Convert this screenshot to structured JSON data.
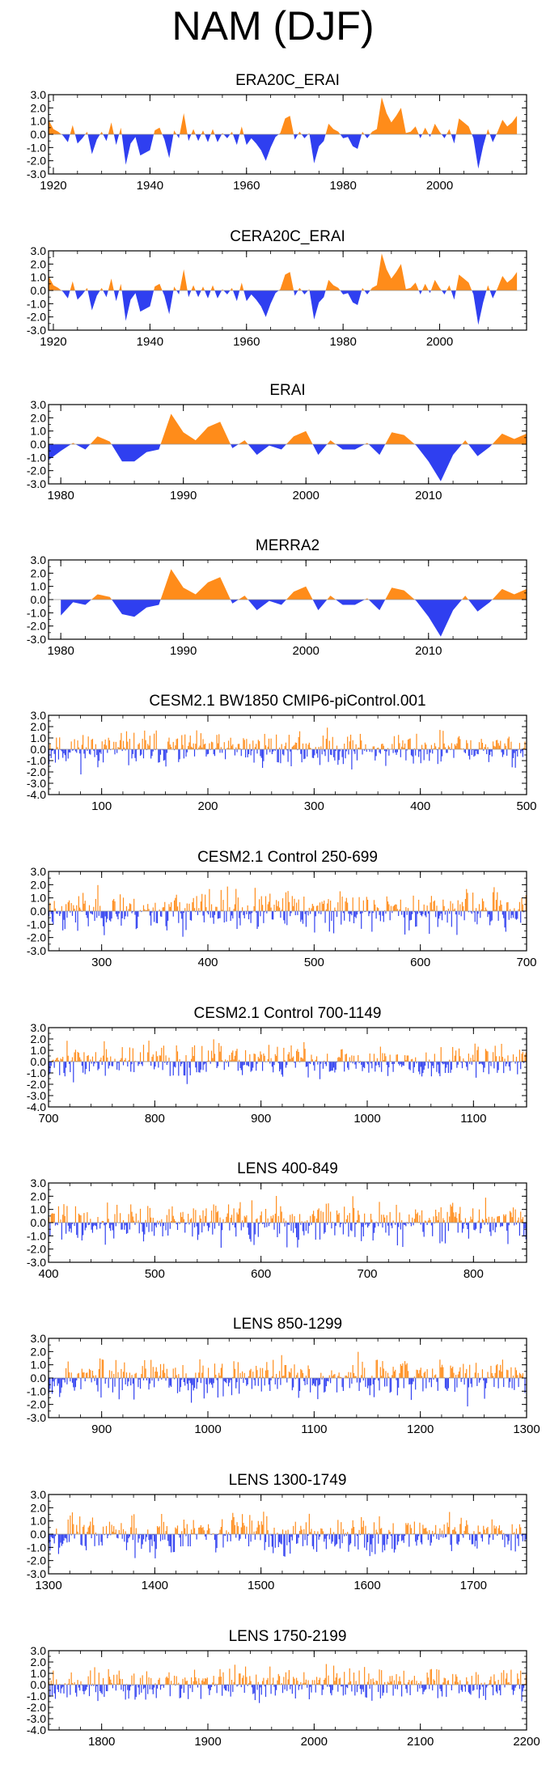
{
  "page": {
    "title": "NAM (DJF)"
  },
  "colors": {
    "positive": "#ff8c1a",
    "negative": "#2f3ff0",
    "axis": "#000000"
  },
  "chart_data": [
    {
      "type": "area",
      "title": "ERA20C_ERAI",
      "xlim": [
        1919,
        2018
      ],
      "ylim": [
        -3.0,
        3.0
      ],
      "yticks": [
        "3.0",
        "2.0",
        "1.0",
        "0.0",
        "-1.0",
        "-2.0",
        "-3.0"
      ],
      "xticks": [
        1920,
        1940,
        1960,
        1980,
        2000
      ],
      "x_start": 1919,
      "values": [
        1.1,
        0.4,
        0.2,
        -0.1,
        -0.6,
        0.7,
        -0.7,
        -0.3,
        0.2,
        -1.5,
        -0.4,
        0.2,
        -0.5,
        0.9,
        -0.8,
        0.5,
        -2.3,
        -0.7,
        -0.2,
        -1.6,
        -1.4,
        -1.2,
        0.3,
        0.5,
        -0.4,
        -1.8,
        0.3,
        -0.3,
        1.6,
        -0.5,
        0.4,
        -0.5,
        0.3,
        -0.6,
        0.4,
        -0.6,
        0.1,
        -0.3,
        0.2,
        -0.8,
        0.6,
        -0.8,
        -0.3,
        -0.7,
        -1.2,
        -2.0,
        -1.0,
        -0.2,
        0.1,
        1.2,
        1.4,
        -0.4,
        0.2,
        -0.3,
        0.1,
        -2.2,
        -0.9,
        -0.5,
        0.8,
        0.4,
        0.2,
        -0.3,
        -0.2,
        -0.9,
        -1.1,
        0.2,
        -0.3,
        0.2,
        0.4,
        2.8,
        1.6,
        0.9,
        1.4,
        2.0,
        0.1,
        0.2,
        0.6,
        -0.3,
        0.5,
        -0.2,
        0.8,
        0.2,
        -0.3,
        0.4,
        -0.7,
        1.2,
        0.9,
        0.6,
        -0.3,
        -2.6,
        -0.9,
        0.4,
        -0.6,
        0.2,
        1.1,
        0.6,
        0.9,
        1.4
      ]
    },
    {
      "type": "area",
      "title": "CERA20C_ERAI",
      "xlim": [
        1919,
        2018
      ],
      "ylim": [
        -3.0,
        3.0
      ],
      "yticks": [
        "3.0",
        "2.0",
        "1.0",
        "0.0",
        "-1.0",
        "-2.0",
        "-3.0"
      ],
      "xticks": [
        1920,
        1940,
        1960,
        1980,
        2000
      ],
      "x_start": 1919,
      "values": [
        1.1,
        0.4,
        0.2,
        -0.1,
        -0.6,
        0.7,
        -0.7,
        -0.3,
        0.2,
        -1.5,
        -0.4,
        0.2,
        -0.5,
        0.9,
        -0.8,
        0.5,
        -2.3,
        -0.7,
        -0.2,
        -1.6,
        -1.4,
        -1.2,
        0.3,
        0.5,
        -0.4,
        -1.8,
        0.3,
        -0.3,
        1.6,
        -0.5,
        0.4,
        -0.5,
        0.3,
        -0.6,
        0.4,
        -0.6,
        0.1,
        -0.3,
        0.2,
        -0.8,
        0.6,
        -0.8,
        -0.3,
        -0.7,
        -1.2,
        -2.0,
        -1.0,
        -0.2,
        0.1,
        1.2,
        1.4,
        -0.4,
        0.2,
        -0.3,
        0.1,
        -2.2,
        -0.9,
        -0.5,
        0.8,
        0.4,
        0.2,
        -0.3,
        -0.2,
        -0.9,
        -1.1,
        0.2,
        -0.3,
        0.2,
        0.4,
        2.8,
        1.6,
        0.9,
        1.4,
        2.0,
        0.1,
        0.2,
        0.6,
        -0.3,
        0.5,
        -0.2,
        0.8,
        0.2,
        -0.3,
        0.4,
        -0.7,
        1.2,
        0.9,
        0.6,
        -0.3,
        -2.6,
        -0.9,
        0.4,
        -0.6,
        0.2,
        1.1,
        0.6,
        0.9,
        1.4
      ]
    },
    {
      "type": "area",
      "title": "ERAI",
      "xlim": [
        1979,
        2018
      ],
      "ylim": [
        -3.0,
        3.0
      ],
      "yticks": [
        "3.0",
        "2.0",
        "1.0",
        "0.0",
        "-1.0",
        "-2.0",
        "-3.0"
      ],
      "xticks": [
        1980,
        1990,
        2000,
        2010
      ],
      "x_start": 1979,
      "values": [
        -1.2,
        -0.5,
        0.1,
        -0.4,
        0.6,
        0.2,
        -1.3,
        -1.3,
        -0.6,
        -0.4,
        2.3,
        0.9,
        0.3,
        1.3,
        1.7,
        -0.3,
        0.3,
        -0.8,
        -0.1,
        -0.4,
        0.6,
        1.0,
        -0.8,
        0.3,
        -0.4,
        -0.4,
        0.1,
        -0.8,
        0.9,
        0.7,
        -0.1,
        -1.3,
        -2.8,
        -0.8,
        0.3,
        -0.9,
        -0.2,
        0.8,
        0.4,
        0.8
      ]
    },
    {
      "type": "area",
      "title": "MERRA2",
      "xlim": [
        1979,
        2018
      ],
      "ylim": [
        -3.0,
        3.0
      ],
      "yticks": [
        "3.0",
        "2.0",
        "1.0",
        "0.0",
        "-1.0",
        "-2.0",
        "-3.0"
      ],
      "xticks": [
        1980,
        1990,
        2000,
        2010
      ],
      "x_start": 1980,
      "values": [
        -1.2,
        -0.2,
        -0.4,
        0.4,
        0.2,
        -1.1,
        -1.3,
        -0.6,
        -0.4,
        2.3,
        0.9,
        0.4,
        1.3,
        1.7,
        -0.3,
        0.3,
        -0.8,
        -0.1,
        -0.4,
        0.6,
        1.0,
        -0.8,
        0.3,
        -0.4,
        -0.4,
        0.1,
        -0.8,
        0.9,
        0.7,
        -0.1,
        -1.3,
        -2.8,
        -0.8,
        0.3,
        -0.9,
        -0.2,
        0.8,
        0.4,
        0.8
      ]
    },
    {
      "type": "bar",
      "title": "CESM2.1 BW1850 CMIP6-piControl.001",
      "xlim": [
        50,
        500
      ],
      "ylim": [
        -4.0,
        3.0
      ],
      "yticks": [
        "3.0",
        "2.0",
        "1.0",
        "0.0",
        "-1.0",
        "-2.0",
        "-3.0",
        "-4.0"
      ],
      "xticks": [
        100,
        200,
        300,
        400,
        500
      ],
      "n": 450,
      "seed": 11
    },
    {
      "type": "bar",
      "title": "CESM2.1 Control 250-699",
      "xlim": [
        250,
        700
      ],
      "ylim": [
        -3.0,
        3.0
      ],
      "yticks": [
        "3.0",
        "2.0",
        "1.0",
        "0.0",
        "-1.0",
        "-2.0",
        "-3.0"
      ],
      "xticks": [
        300,
        400,
        500,
        600,
        700
      ],
      "n": 450,
      "seed": 23
    },
    {
      "type": "bar",
      "title": "CESM2.1 Control 700-1149",
      "xlim": [
        700,
        1150
      ],
      "ylim": [
        -4.0,
        3.0
      ],
      "yticks": [
        "3.0",
        "2.0",
        "1.0",
        "0.0",
        "-1.0",
        "-2.0",
        "-3.0",
        "-4.0"
      ],
      "xticks": [
        700,
        800,
        900,
        1000,
        1100
      ],
      "n": 450,
      "seed": 37
    },
    {
      "type": "bar",
      "title": "LENS 400-849",
      "xlim": [
        400,
        850
      ],
      "ylim": [
        -3.0,
        3.0
      ],
      "yticks": [
        "3.0",
        "2.0",
        "1.0",
        "0.0",
        "-1.0",
        "-2.0",
        "-3.0"
      ],
      "xticks": [
        400,
        500,
        600,
        700,
        800
      ],
      "n": 450,
      "seed": 41
    },
    {
      "type": "bar",
      "title": "LENS 850-1299",
      "xlim": [
        850,
        1300
      ],
      "ylim": [
        -3.0,
        3.0
      ],
      "yticks": [
        "3.0",
        "2.0",
        "1.0",
        "0.0",
        "-1.0",
        "-2.0",
        "-3.0"
      ],
      "xticks": [
        900,
        1000,
        1100,
        1200,
        1300
      ],
      "n": 450,
      "seed": 53
    },
    {
      "type": "bar",
      "title": "LENS 1300-1749",
      "xlim": [
        1300,
        1750
      ],
      "ylim": [
        -3.0,
        3.0
      ],
      "yticks": [
        "3.0",
        "2.0",
        "1.0",
        "0.0",
        "-1.0",
        "-2.0",
        "-3.0"
      ],
      "xticks": [
        1300,
        1400,
        1500,
        1600,
        1700
      ],
      "n": 450,
      "seed": 67
    },
    {
      "type": "bar",
      "title": "LENS 1750-2199",
      "xlim": [
        1750,
        2200
      ],
      "ylim": [
        -4.0,
        3.0
      ],
      "yticks": [
        "3.0",
        "2.0",
        "1.0",
        "0.0",
        "-1.0",
        "-2.0",
        "-3.0",
        "-4.0"
      ],
      "xticks": [
        1800,
        1900,
        2000,
        2100,
        2200
      ],
      "n": 450,
      "seed": 79
    }
  ]
}
